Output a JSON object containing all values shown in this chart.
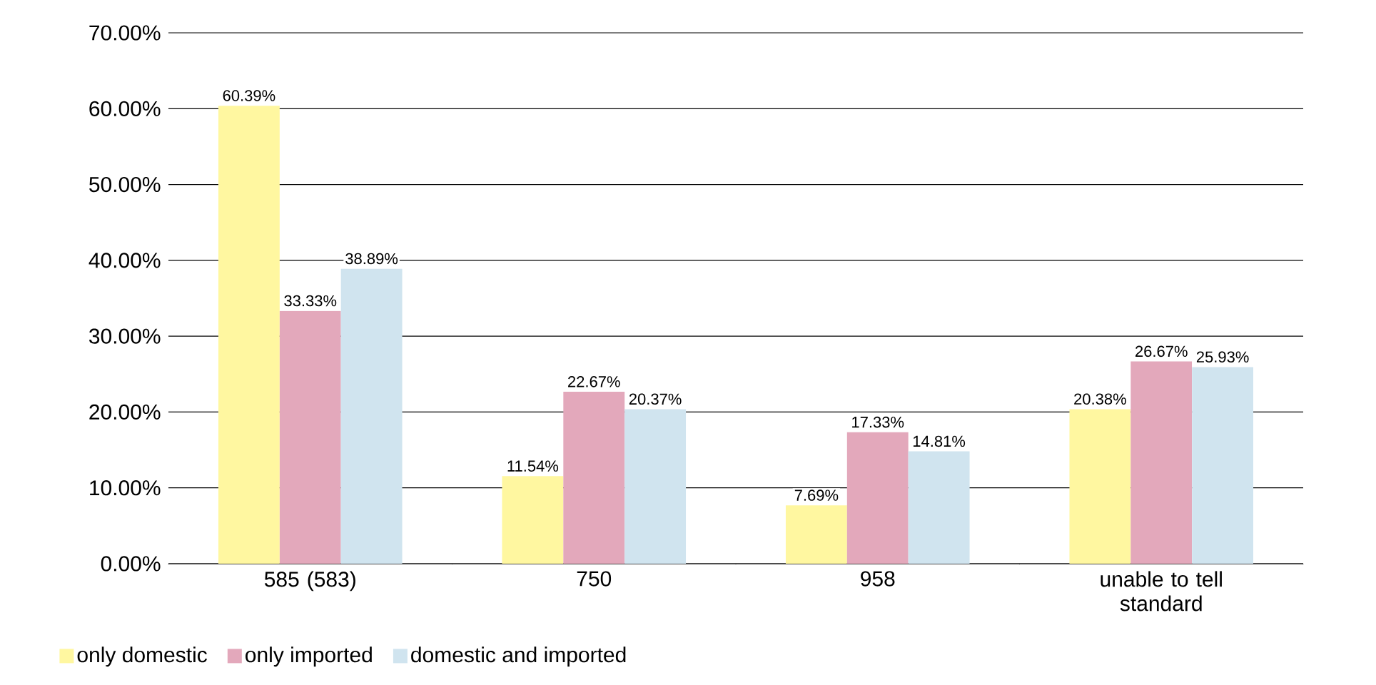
{
  "chart_data": {
    "type": "bar",
    "categories": [
      "585 (583)",
      "750",
      "958",
      "unable to tell standard"
    ],
    "series": [
      {
        "name": "only domestic",
        "color": "#fff7a0",
        "values": [
          60.39,
          11.54,
          7.69,
          20.38
        ],
        "value_labels": [
          "60.39%",
          "11.54%",
          "7.69%",
          "20.38%"
        ]
      },
      {
        "name": "only imported",
        "color": "#e3a8bb",
        "values": [
          33.33,
          22.67,
          17.33,
          26.67
        ],
        "value_labels": [
          "33.33%",
          "22.67%",
          "17.33%",
          "26.67%"
        ]
      },
      {
        "name": "domestic and imported",
        "color": "#d0e4ef",
        "values": [
          38.89,
          20.37,
          14.81,
          25.93
        ],
        "value_labels": [
          "38.89%",
          "20.37%",
          "14.81%",
          "25.93%"
        ]
      }
    ],
    "ylim": [
      0,
      70
    ],
    "yticks": [
      {
        "value": 0,
        "label": "0.00%"
      },
      {
        "value": 10,
        "label": "10.00%"
      },
      {
        "value": 20,
        "label": "20.00%"
      },
      {
        "value": 30,
        "label": "30.00%"
      },
      {
        "value": 40,
        "label": "40.00%"
      },
      {
        "value": 50,
        "label": "50.00%"
      },
      {
        "value": 60,
        "label": "60.00%"
      },
      {
        "value": 70,
        "label": "70.00%"
      }
    ],
    "grid": "y",
    "legend": "bottom"
  }
}
